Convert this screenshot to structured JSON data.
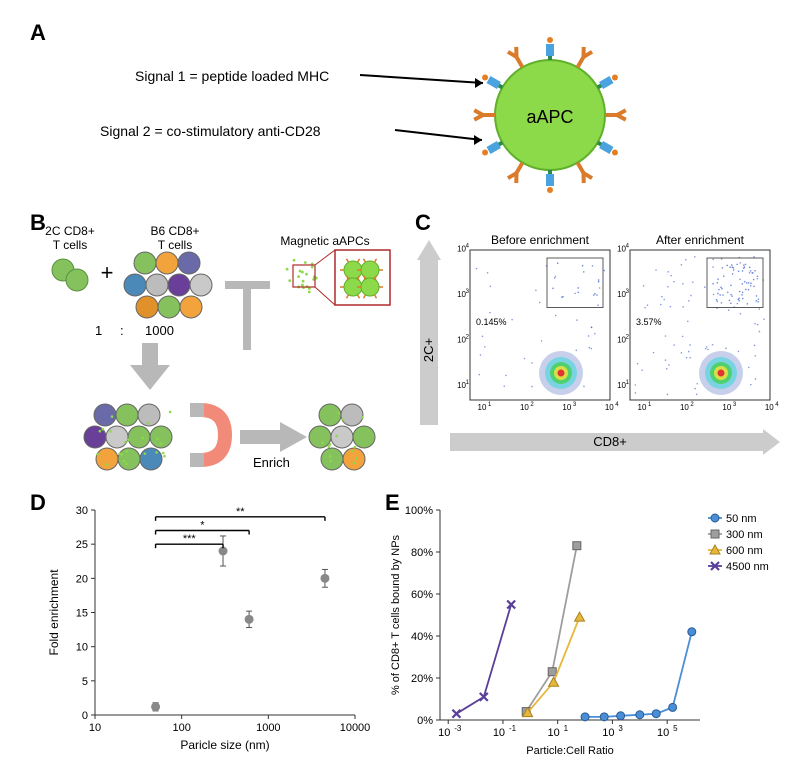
{
  "panelA": {
    "label": "A",
    "signal1": "Signal 1 = peptide loaded MHC",
    "signal2": "Signal 2 = co-stimulatory anti-CD28",
    "aapc_label": "aAPC",
    "circle_fill": "#8cd94a",
    "circle_stroke": "#5fb02b",
    "antibody1_color": "#d97b2b",
    "antibody2_color": "#3a7fd9",
    "mhc_top_color": "#4aa3df",
    "mhc_peptide_color": "#e67e22"
  },
  "panelB": {
    "label": "B",
    "t2c_label": "2C CD8+\nT cells",
    "b6_label": "B6 CD8+\nT cells",
    "aapc_label": "Magnetic aAPCs",
    "ratio_left": "1",
    "ratio_sep": ":",
    "ratio_right": "1000",
    "enrich_label": "Enrich",
    "cell_colors": [
      "#85c15d",
      "#f2a33c",
      "#6a6aa8",
      "#4a89b8",
      "#bcbcbc",
      "#6a3f99",
      "#c9c9c9",
      "#e0912a"
    ],
    "arrow_color": "#b8b8b8",
    "magnet_red": "#f28a7a",
    "magnet_gray": "#b8b8b8",
    "box_stroke": "#b02a2a",
    "nano_fill": "#8cd94a"
  },
  "panelC": {
    "label": "C",
    "before_title": "Before enrichment",
    "after_title": "After enrichment",
    "y_axis": "2C+",
    "x_axis": "CD8+",
    "before_pct": "0.145%",
    "after_pct": "3.57%",
    "ticks": [
      "10^1",
      "10^2",
      "10^3",
      "10^4"
    ],
    "arrow_fill": "#cccccc",
    "dot_main": "#3355cc",
    "density_colors": [
      "#1f3fb0",
      "#2adada",
      "#3ecf3e",
      "#f2e142",
      "#e23333"
    ]
  },
  "panelD": {
    "label": "D",
    "y_axis": "Fold enrichment",
    "x_axis": "Paricle size (nm)",
    "xticks": [
      10,
      100,
      1000,
      10000
    ],
    "yticks": [
      0,
      5,
      10,
      15,
      20,
      25,
      30
    ],
    "xlim": [
      10,
      10000
    ],
    "ylim": [
      0,
      30
    ],
    "points": [
      {
        "x": 50,
        "y": 1.2,
        "err": 0.6
      },
      {
        "x": 300,
        "y": 24,
        "err": 2.2
      },
      {
        "x": 600,
        "y": 14,
        "err": 1.2
      },
      {
        "x": 4500,
        "y": 20,
        "err": 1.3
      }
    ],
    "sig_bars": [
      {
        "from": 50,
        "to": 4500,
        "y": 29,
        "label": "**"
      },
      {
        "from": 50,
        "to": 600,
        "y": 27,
        "label": "*"
      },
      {
        "from": 50,
        "to": 300,
        "y": 25,
        "label": "***"
      }
    ],
    "marker_fill": "#888888",
    "axis_color": "#333333"
  },
  "panelE": {
    "label": "E",
    "y_axis": "% of CD8+ T cells bound by NPs",
    "x_axis": "Particle:Cell Ratio",
    "yticks": [
      0,
      20,
      40,
      60,
      80,
      100
    ],
    "xticks_exp": [
      -3,
      -1,
      1,
      3,
      5
    ],
    "xlim_exp": [
      -3.3,
      6.2
    ],
    "ylim": [
      0,
      100
    ],
    "series": [
      {
        "name": "50 nm",
        "color": "#4a8fd6",
        "marker": "circle",
        "points": [
          [
            2.0,
            1.5
          ],
          [
            2.7,
            1.5
          ],
          [
            3.3,
            2
          ],
          [
            4.0,
            2.5
          ],
          [
            4.6,
            3
          ],
          [
            5.2,
            6
          ],
          [
            5.9,
            42
          ]
        ]
      },
      {
        "name": "300 nm",
        "color": "#9e9e9e",
        "marker": "square",
        "points": [
          [
            -0.15,
            4
          ],
          [
            0.8,
            23
          ],
          [
            1.7,
            83
          ]
        ]
      },
      {
        "name": "600 nm",
        "color": "#e6b83a",
        "marker": "triangle",
        "points": [
          [
            -0.1,
            3.5
          ],
          [
            0.85,
            18
          ],
          [
            1.8,
            49
          ]
        ]
      },
      {
        "name": "4500 nm",
        "color": "#5a3f99",
        "marker": "x",
        "points": [
          [
            -2.7,
            3
          ],
          [
            -1.7,
            11
          ],
          [
            -0.7,
            55
          ]
        ]
      }
    ],
    "legend_labels": [
      "50 nm",
      "300 nm",
      "600 nm",
      "4500 nm"
    ]
  }
}
